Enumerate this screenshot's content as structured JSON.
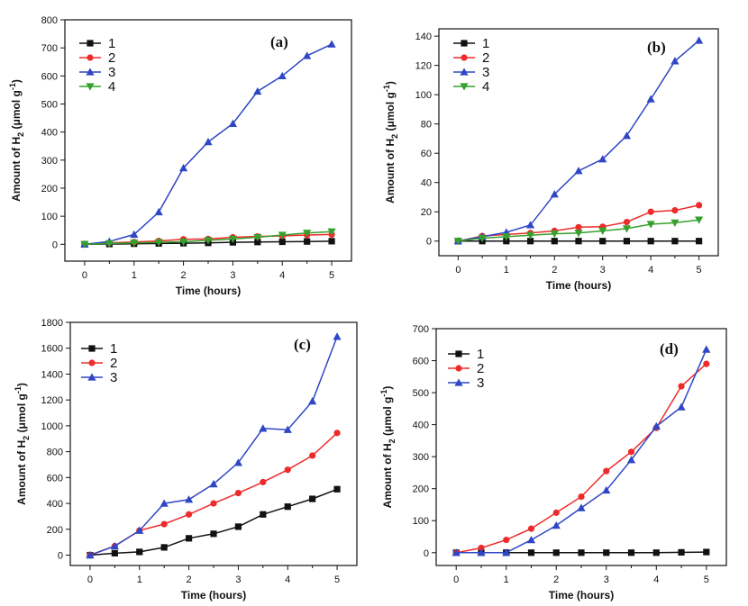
{
  "figure": {
    "colors": {
      "1": "#111111",
      "2": "#ee2b2b",
      "3": "#2f47c4",
      "4": "#36a02c"
    },
    "markers": {
      "1": "square",
      "2": "circle",
      "3": "triangle-up",
      "4": "triangle-down"
    }
  },
  "chart_data": [
    {
      "type": "line",
      "panel": "(a)",
      "xlabel": "Time (hours)",
      "ylabel": "Amount of H2 (μmol g-1)",
      "ylabel_parts": [
        "Amount of H",
        "2",
        " (μmol g",
        "-1",
        ")"
      ],
      "xlim": [
        -0.4,
        5.4
      ],
      "ylim": [
        -60,
        800
      ],
      "xticks": [
        0,
        1,
        2,
        3,
        4,
        5
      ],
      "yticks": [
        0,
        100,
        200,
        300,
        400,
        500,
        600,
        700,
        800
      ],
      "legend_position": "top-left",
      "x": [
        0,
        0.5,
        1,
        1.5,
        2,
        2.5,
        3,
        3.5,
        4,
        4.5,
        5
      ],
      "series": [
        {
          "name": "1",
          "values": [
            0,
            1,
            2,
            3,
            4,
            5,
            7,
            8,
            9,
            10,
            11
          ]
        },
        {
          "name": "2",
          "values": [
            0,
            5,
            8,
            12,
            18,
            19,
            25,
            28,
            30,
            33,
            35
          ]
        },
        {
          "name": "3",
          "values": [
            0,
            10,
            35,
            115,
            272,
            365,
            430,
            545,
            600,
            672,
            713
          ]
        },
        {
          "name": "4",
          "values": [
            0,
            3,
            5,
            7,
            9,
            14,
            19,
            25,
            33,
            40,
            45
          ]
        }
      ]
    },
    {
      "type": "line",
      "panel": "(b)",
      "xlabel": "Time (hours)",
      "ylabel": "Amount of H2 (μmol g-1)",
      "ylabel_parts": [
        "Amount of H",
        "2",
        " (μmol g",
        "-1",
        ")"
      ],
      "xlim": [
        -0.4,
        5.4
      ],
      "ylim": [
        -10,
        145
      ],
      "xticks": [
        0,
        1,
        2,
        3,
        4,
        5
      ],
      "yticks": [
        0,
        20,
        40,
        60,
        80,
        100,
        120,
        140
      ],
      "legend_position": "top-left",
      "x": [
        0,
        0.5,
        1,
        1.5,
        2,
        2.5,
        3,
        3.5,
        4,
        4.5,
        5
      ],
      "series": [
        {
          "name": "1",
          "values": [
            0,
            0,
            0,
            0,
            0,
            0,
            0,
            0,
            0,
            0,
            0
          ]
        },
        {
          "name": "2",
          "values": [
            0,
            3.5,
            4.5,
            5.5,
            7,
            9.5,
            9.8,
            13,
            20,
            21,
            24.5
          ]
        },
        {
          "name": "3",
          "values": [
            0,
            3,
            6,
            11,
            32,
            48,
            56,
            72,
            97,
            123,
            137
          ]
        },
        {
          "name": "4",
          "values": [
            0,
            2,
            3,
            4,
            5,
            5.5,
            7,
            8.5,
            11.5,
            12.5,
            14.5
          ]
        }
      ]
    },
    {
      "type": "line",
      "panel": "(c)",
      "xlabel": "Time (hours)",
      "ylabel": "Amount of H2 (μmol g-1)",
      "ylabel_parts": [
        "Amount of H",
        "2",
        " (μmol g",
        "-1",
        ")"
      ],
      "xlim": [
        -0.4,
        5.4
      ],
      "ylim": [
        -80,
        1800
      ],
      "xticks": [
        0,
        1,
        2,
        3,
        4,
        5
      ],
      "yticks": [
        0,
        200,
        400,
        600,
        800,
        1000,
        1200,
        1400,
        1600,
        1800
      ],
      "legend_position": "top-left",
      "x": [
        0,
        0.5,
        1,
        1.5,
        2,
        2.5,
        3,
        3.5,
        4,
        4.5,
        5
      ],
      "series": [
        {
          "name": "1",
          "values": [
            0,
            15,
            25,
            60,
            130,
            165,
            220,
            315,
            375,
            435,
            510
          ]
        },
        {
          "name": "2",
          "values": [
            0,
            70,
            190,
            240,
            315,
            400,
            480,
            565,
            660,
            770,
            945
          ]
        },
        {
          "name": "3",
          "values": [
            0,
            70,
            190,
            400,
            430,
            550,
            715,
            980,
            970,
            1190,
            1690
          ]
        }
      ]
    },
    {
      "type": "line",
      "panel": "(d)",
      "xlabel": "Time (hours)",
      "ylabel": "Amount of H2 (μmol g-1)",
      "ylabel_parts": [
        "Amount of H",
        "2",
        " (μmol g",
        "-1",
        ")"
      ],
      "xlim": [
        -0.4,
        5.4
      ],
      "ylim": [
        -40,
        700
      ],
      "xticks": [
        0,
        1,
        2,
        3,
        4,
        5
      ],
      "yticks": [
        0,
        100,
        200,
        300,
        400,
        500,
        600,
        700
      ],
      "legend_position": "top-left",
      "x": [
        0,
        0.5,
        1,
        1.5,
        2,
        2.5,
        3,
        3.5,
        4,
        4.5,
        5
      ],
      "series": [
        {
          "name": "1",
          "values": [
            0,
            0,
            0,
            0,
            0,
            0,
            0,
            0,
            0,
            1,
            2
          ]
        },
        {
          "name": "2",
          "values": [
            0,
            15,
            40,
            75,
            125,
            175,
            255,
            315,
            390,
            520,
            590
          ]
        },
        {
          "name": "3",
          "values": [
            0,
            0,
            0,
            40,
            85,
            140,
            195,
            290,
            395,
            455,
            635
          ]
        }
      ]
    }
  ]
}
